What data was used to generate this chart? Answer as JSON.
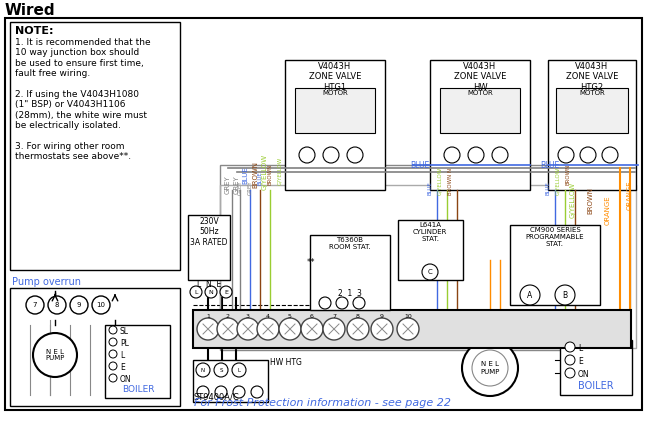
{
  "title": "Wired",
  "bg_color": "#ffffff",
  "note_title": "NOTE:",
  "note_lines": [
    "1. It is recommended that the",
    "10 way junction box should",
    "be used to ensure first time,",
    "fault free wiring.",
    "",
    "2. If using the V4043H1080",
    "(1\" BSP) or V4043H1106",
    "(28mm), the white wire must",
    "be electrically isolated.",
    "",
    "3. For wiring other room",
    "thermostats see above**."
  ],
  "pump_overrun_label": "Pump overrun",
  "footer_text": "For Frost Protection information - see page 22",
  "footer_color": "#4169e1",
  "boiler_label": "BOILER",
  "supply_text": "230V\n50Hz\n3A RATED",
  "room_stat_label": "T6360B\nROOM STAT.",
  "cylinder_stat_label": "L641A\nCYLINDER\nSTAT.",
  "cm900_label": "CM900 SERIES\nPROGRAMMABLE\nSTAT.",
  "st9400_label": "ST9400A/C",
  "hw_htg_label": "HW HTG",
  "junction_numbers": [
    "1",
    "2",
    "3",
    "4",
    "5",
    "6",
    "7",
    "8",
    "9",
    "10"
  ],
  "zv_labels": [
    "V4043H\nZONE VALVE\nHTG1",
    "V4043H\nZONE VALVE\nHW",
    "V4043H\nZONE VALVE\nHTG2"
  ],
  "blue": "#4169e1",
  "grey": "#808080",
  "brown": "#8B4513",
  "gyellow": "#9acd32",
  "orange": "#ff8c00",
  "black": "#000000",
  "lightgrey": "#d0d0d0",
  "dkgrey": "#404040"
}
